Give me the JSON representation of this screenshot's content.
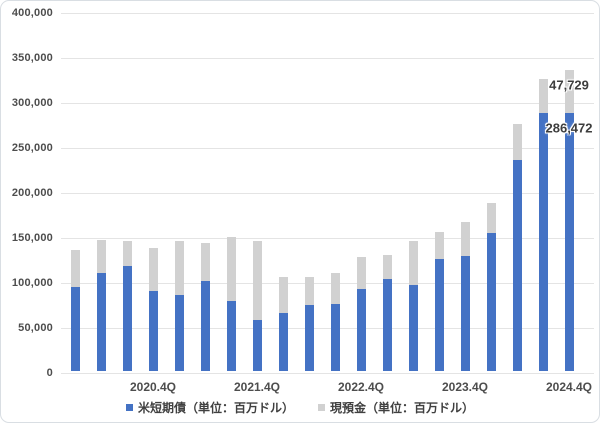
{
  "chart_data": {
    "type": "bar",
    "stacked": true,
    "title": "",
    "categories": [
      "2020.1Q",
      "2020.2Q",
      "2020.3Q",
      "2020.4Q",
      "2021.1Q",
      "2021.2Q",
      "2021.3Q",
      "2021.4Q",
      "2022.1Q",
      "2022.2Q",
      "2022.3Q",
      "2022.4Q",
      "2023.1Q",
      "2023.2Q",
      "2023.3Q",
      "2023.4Q",
      "2024.1Q",
      "2024.2Q",
      "2024.3Q",
      "2024.4Q"
    ],
    "series": [
      {
        "name": "米短期債（単位：百万ドル）",
        "color": "#4472c4",
        "values": [
          93000,
          109000,
          117000,
          89000,
          84000,
          100000,
          78000,
          57000,
          65000,
          73000,
          75000,
          91000,
          102000,
          96000,
          124000,
          128000,
          153000,
          234000,
          287000,
          286472
        ]
      },
      {
        "name": "現預金（単位：百万ドル）",
        "color": "#d1d1d1",
        "values": [
          42000,
          37000,
          28000,
          48000,
          60000,
          42000,
          71000,
          88000,
          40000,
          31000,
          34000,
          36000,
          27000,
          49000,
          31000,
          38000,
          34000,
          40000,
          37000,
          47729
        ]
      }
    ],
    "y_axis": {
      "min": 0,
      "max": 400000,
      "step": 50000,
      "tick_labels": [
        "0",
        "50,000",
        "100,000",
        "150,000",
        "200,000",
        "250,000",
        "300,000",
        "350,000",
        "400,000"
      ]
    },
    "x_axis_ticks": [
      {
        "index": 3,
        "label": "2020.4Q"
      },
      {
        "index": 7,
        "label": "2021.4Q"
      },
      {
        "index": 11,
        "label": "2022.4Q"
      },
      {
        "index": 15,
        "label": "2023.4Q"
      },
      {
        "index": 19,
        "label": "2024.4Q"
      }
    ],
    "annotations": [
      {
        "text": "47,729",
        "category_index": 19,
        "anchor": "stack_top"
      },
      {
        "text": "286,472",
        "category_index": 19,
        "anchor": "first_series_top"
      }
    ],
    "grid": true,
    "legend_position": "bottom"
  },
  "colors": {
    "grid": "#e4e4e4",
    "axis_text": "#4d4d4d",
    "annotation_text": "#3d3d3d",
    "background": "#ffffff",
    "frame_border": "#d9dee3"
  }
}
